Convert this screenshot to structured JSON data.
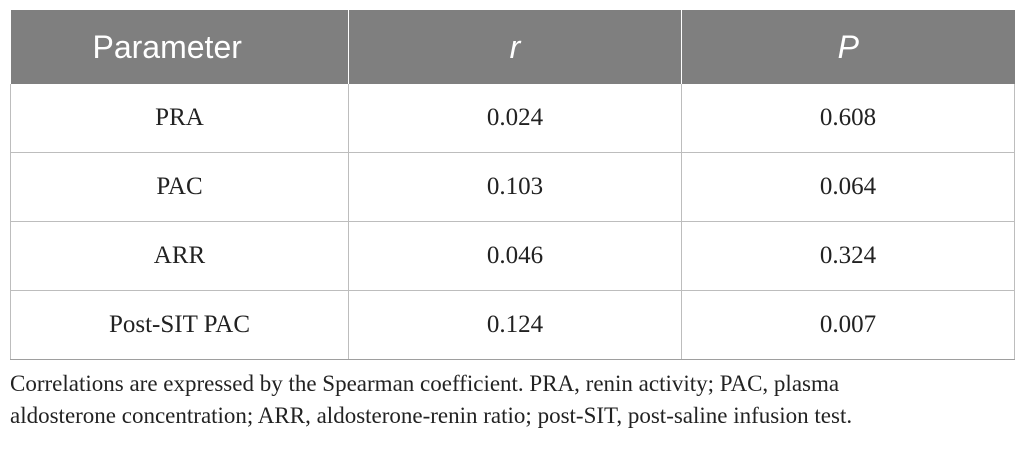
{
  "table": {
    "headers": [
      "Parameter",
      "r",
      "P"
    ],
    "rows": [
      [
        "PRA",
        "0.024",
        "0.608"
      ],
      [
        "PAC",
        "0.103",
        "0.064"
      ],
      [
        "ARR",
        "0.046",
        "0.324"
      ],
      [
        "Post-SIT PAC",
        "0.124",
        "0.007"
      ]
    ]
  },
  "footnote": {
    "line1": "Correlations are expressed by the Spearman coefficient. PRA, renin activity; PAC, plasma",
    "line2": "aldosterone concentration; ARR, aldosterone-renin ratio; post-SIT, post-saline infusion test."
  }
}
